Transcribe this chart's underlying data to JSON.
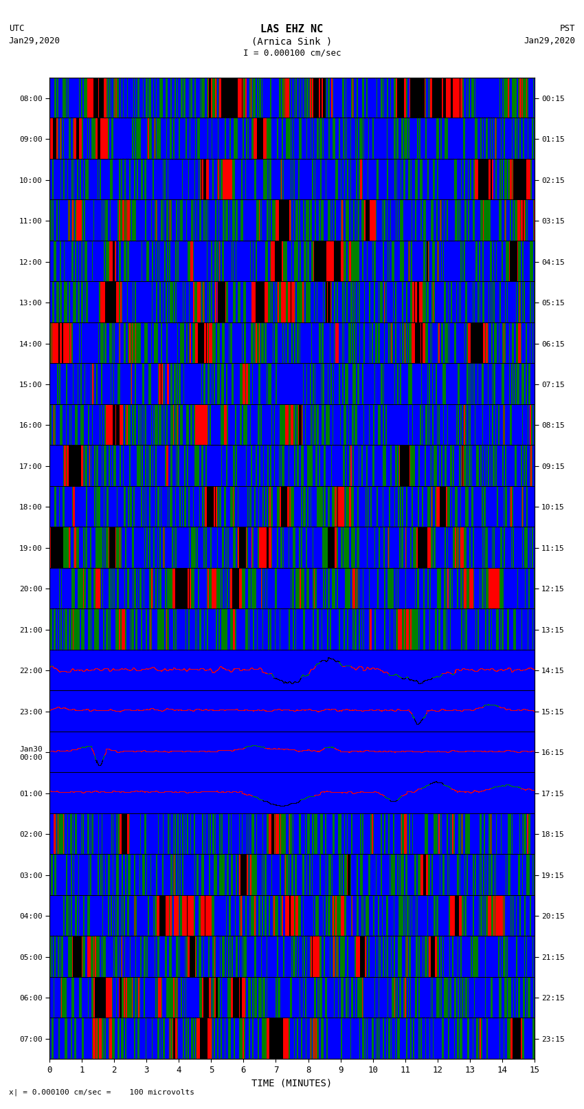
{
  "title_line1": "LAS EHZ NC",
  "title_line2": "(Arnica Sink )",
  "scale_text": "I = 0.000100 cm/sec",
  "bottom_scale_text": "x| = 0.000100 cm/sec =    100 microvolts",
  "left_label": "UTC",
  "left_date": "Jan29,2020",
  "right_label": "PST",
  "right_date": "Jan29,2020",
  "xlabel": "TIME (MINUTES)",
  "xmin": 0,
  "xmax": 15,
  "xticks": [
    0,
    1,
    2,
    3,
    4,
    5,
    6,
    7,
    8,
    9,
    10,
    11,
    12,
    13,
    14,
    15
  ],
  "left_ytick_labels": [
    "08:00",
    "09:00",
    "10:00",
    "11:00",
    "12:00",
    "13:00",
    "14:00",
    "15:00",
    "16:00",
    "17:00",
    "18:00",
    "19:00",
    "20:00",
    "21:00",
    "22:00",
    "23:00",
    "Jan30\n00:00",
    "01:00",
    "02:00",
    "03:00",
    "04:00",
    "05:00",
    "06:00",
    "07:00"
  ],
  "right_ytick_labels": [
    "00:15",
    "01:15",
    "02:15",
    "03:15",
    "04:15",
    "05:15",
    "06:15",
    "07:15",
    "08:15",
    "09:15",
    "10:15",
    "11:15",
    "12:15",
    "13:15",
    "14:15",
    "15:15",
    "16:15",
    "17:15",
    "18:15",
    "19:15",
    "20:15",
    "21:15",
    "22:15",
    "23:15"
  ],
  "n_rows": 24,
  "background_color": "#ffffff",
  "fig_width": 8.5,
  "fig_height": 16.13,
  "dpi": 100,
  "row_patterns": {
    "high_activity_rows": [
      0,
      1,
      2,
      3,
      4,
      5,
      6,
      7,
      8,
      9,
      10,
      11,
      12,
      13,
      14,
      21,
      22,
      23
    ],
    "medium_rows": [
      15,
      16,
      17,
      18,
      19,
      20
    ],
    "quiet_rows": []
  },
  "color_blue": [
    0,
    0,
    255
  ],
  "color_red": [
    255,
    0,
    0
  ],
  "color_green": [
    0,
    128,
    0
  ],
  "color_black": [
    0,
    0,
    0
  ],
  "color_white": [
    255,
    255,
    255
  ]
}
